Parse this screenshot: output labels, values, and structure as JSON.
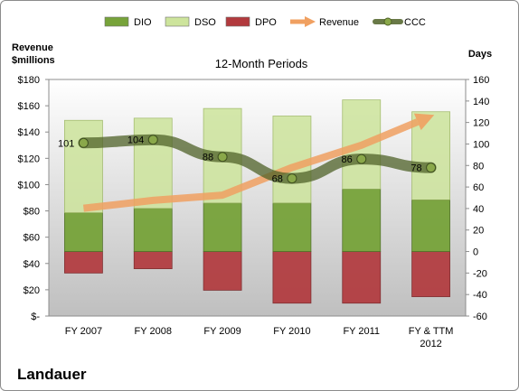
{
  "company": "Landauer",
  "chart_data": {
    "type": "bar",
    "title": "12-Month Periods",
    "ylabel_left": "Revenue $millions",
    "ylabel_right": "Days",
    "categories": [
      "FY 2007",
      "FY 2008",
      "FY 2009",
      "FY 2010",
      "FY 2011",
      "FY & TTM 2012"
    ],
    "left_axis": {
      "ylim": [
        0,
        180
      ],
      "ticks": [
        0,
        20,
        40,
        60,
        80,
        100,
        120,
        140,
        160,
        180
      ],
      "tick_labels": [
        "$-",
        "$20",
        "$40",
        "$60",
        "$80",
        "$100",
        "$120",
        "$140",
        "$160",
        "$180"
      ]
    },
    "right_axis": {
      "ylim": [
        -60,
        160
      ],
      "ticks": [
        -60,
        -40,
        -20,
        0,
        20,
        40,
        60,
        80,
        100,
        120,
        140,
        160
      ]
    },
    "series": [
      {
        "name": "DIO",
        "type": "stacked-bar",
        "axis": "right",
        "color": "#77a33a",
        "values": [
          36,
          40,
          45,
          45,
          58,
          48
        ]
      },
      {
        "name": "DSO",
        "type": "stacked-bar",
        "axis": "right",
        "color": "#cde49c",
        "values": [
          86,
          84,
          88,
          81,
          83,
          82
        ]
      },
      {
        "name": "DPO",
        "type": "stacked-bar",
        "axis": "right",
        "color": "#b23a3e",
        "values": [
          -20,
          -16,
          -36,
          -48,
          -48,
          -42
        ]
      },
      {
        "name": "Revenue",
        "type": "arrow-line",
        "axis": "left",
        "color": "#f0a061",
        "values": [
          82,
          88,
          92,
          113,
          130,
          152
        ]
      },
      {
        "name": "CCC",
        "type": "line",
        "axis": "right",
        "color": "#4f6228",
        "values": [
          101,
          104,
          88,
          68,
          86,
          78
        ]
      }
    ],
    "data_labels": [
      "101",
      "104",
      "88",
      "68",
      "86",
      "78"
    ],
    "legend": "top",
    "grid": false
  }
}
